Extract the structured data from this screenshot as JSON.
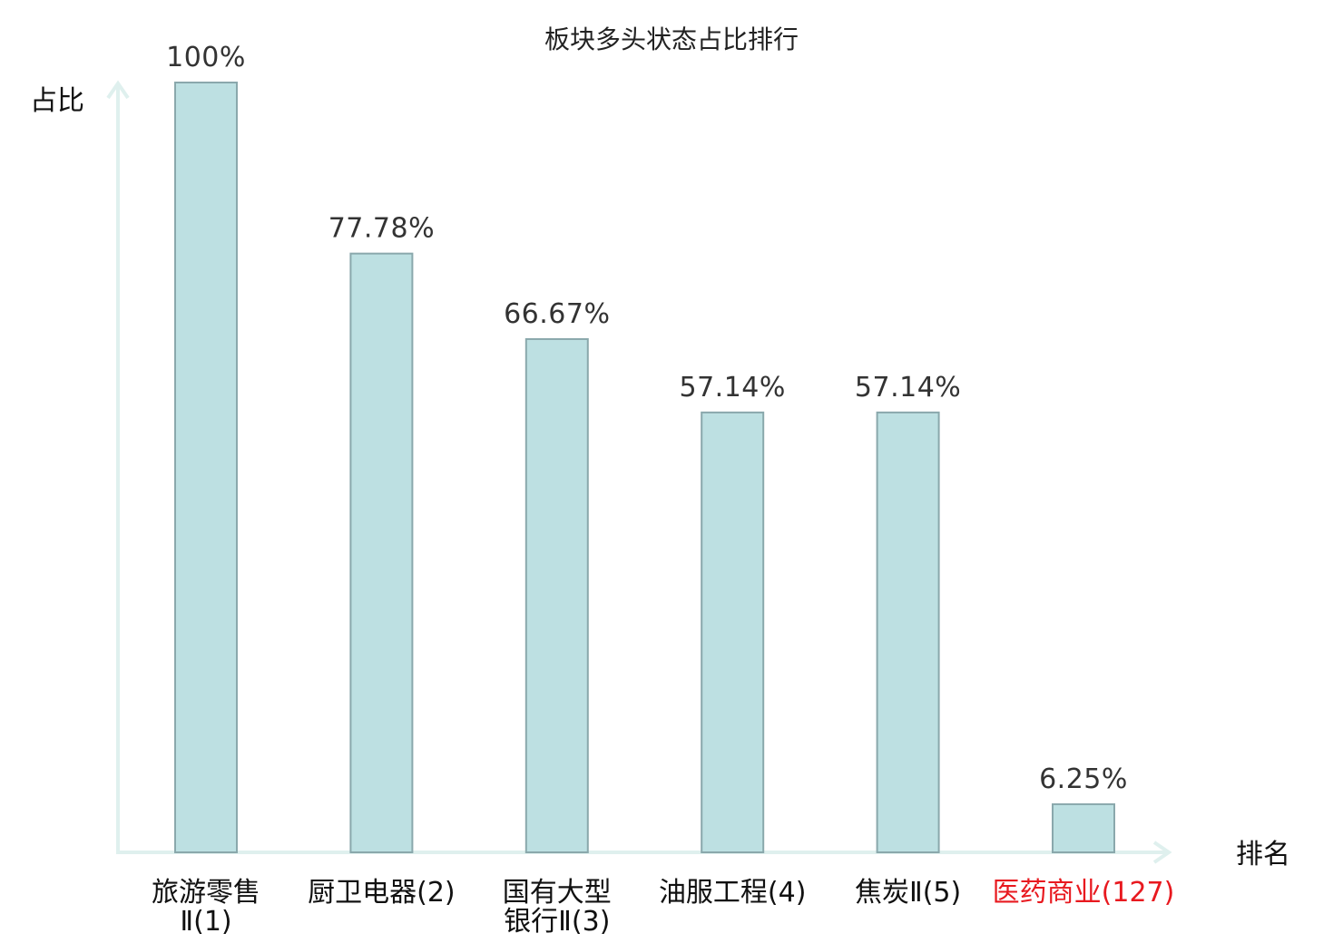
{
  "chart_data": {
    "type": "bar",
    "title": "板块多头状态占比排行",
    "ylabel": "占比",
    "xlabel": "排名",
    "ylim": [
      0,
      100
    ],
    "unit": "%",
    "categories": [
      {
        "name": "旅游零售Ⅱ",
        "rank": "(1)",
        "lines": [
          "旅游零售",
          "Ⅱ(1)"
        ]
      },
      {
        "name": "厨卫电器",
        "rank": "(2)",
        "lines": [
          "厨卫电器(2)"
        ]
      },
      {
        "name": "国有大型银行Ⅱ",
        "rank": "(3)",
        "lines": [
          "国有大型",
          "银行Ⅱ(3)"
        ]
      },
      {
        "name": "油服工程",
        "rank": "(4)",
        "lines": [
          "油服工程(4)"
        ]
      },
      {
        "name": "焦炭Ⅱ",
        "rank": "(5)",
        "lines": [
          "焦炭Ⅱ(5)"
        ]
      },
      {
        "name": "医药商业",
        "rank": "(127)",
        "lines": [
          "医药商业(127)"
        ],
        "highlight": true
      }
    ],
    "values": [
      100,
      77.78,
      66.67,
      57.14,
      57.14,
      6.25
    ],
    "value_labels": [
      "100%",
      "77.78%",
      "66.67%",
      "57.14%",
      "57.14%",
      "6.25%"
    ],
    "grid": false,
    "legend": "none",
    "colors": {
      "bar_fill": "#bde0e2",
      "bar_stroke": "#8aa8ac",
      "axis": "#dff0ee",
      "highlight_text": "#e8191f",
      "text": "#111111"
    }
  }
}
